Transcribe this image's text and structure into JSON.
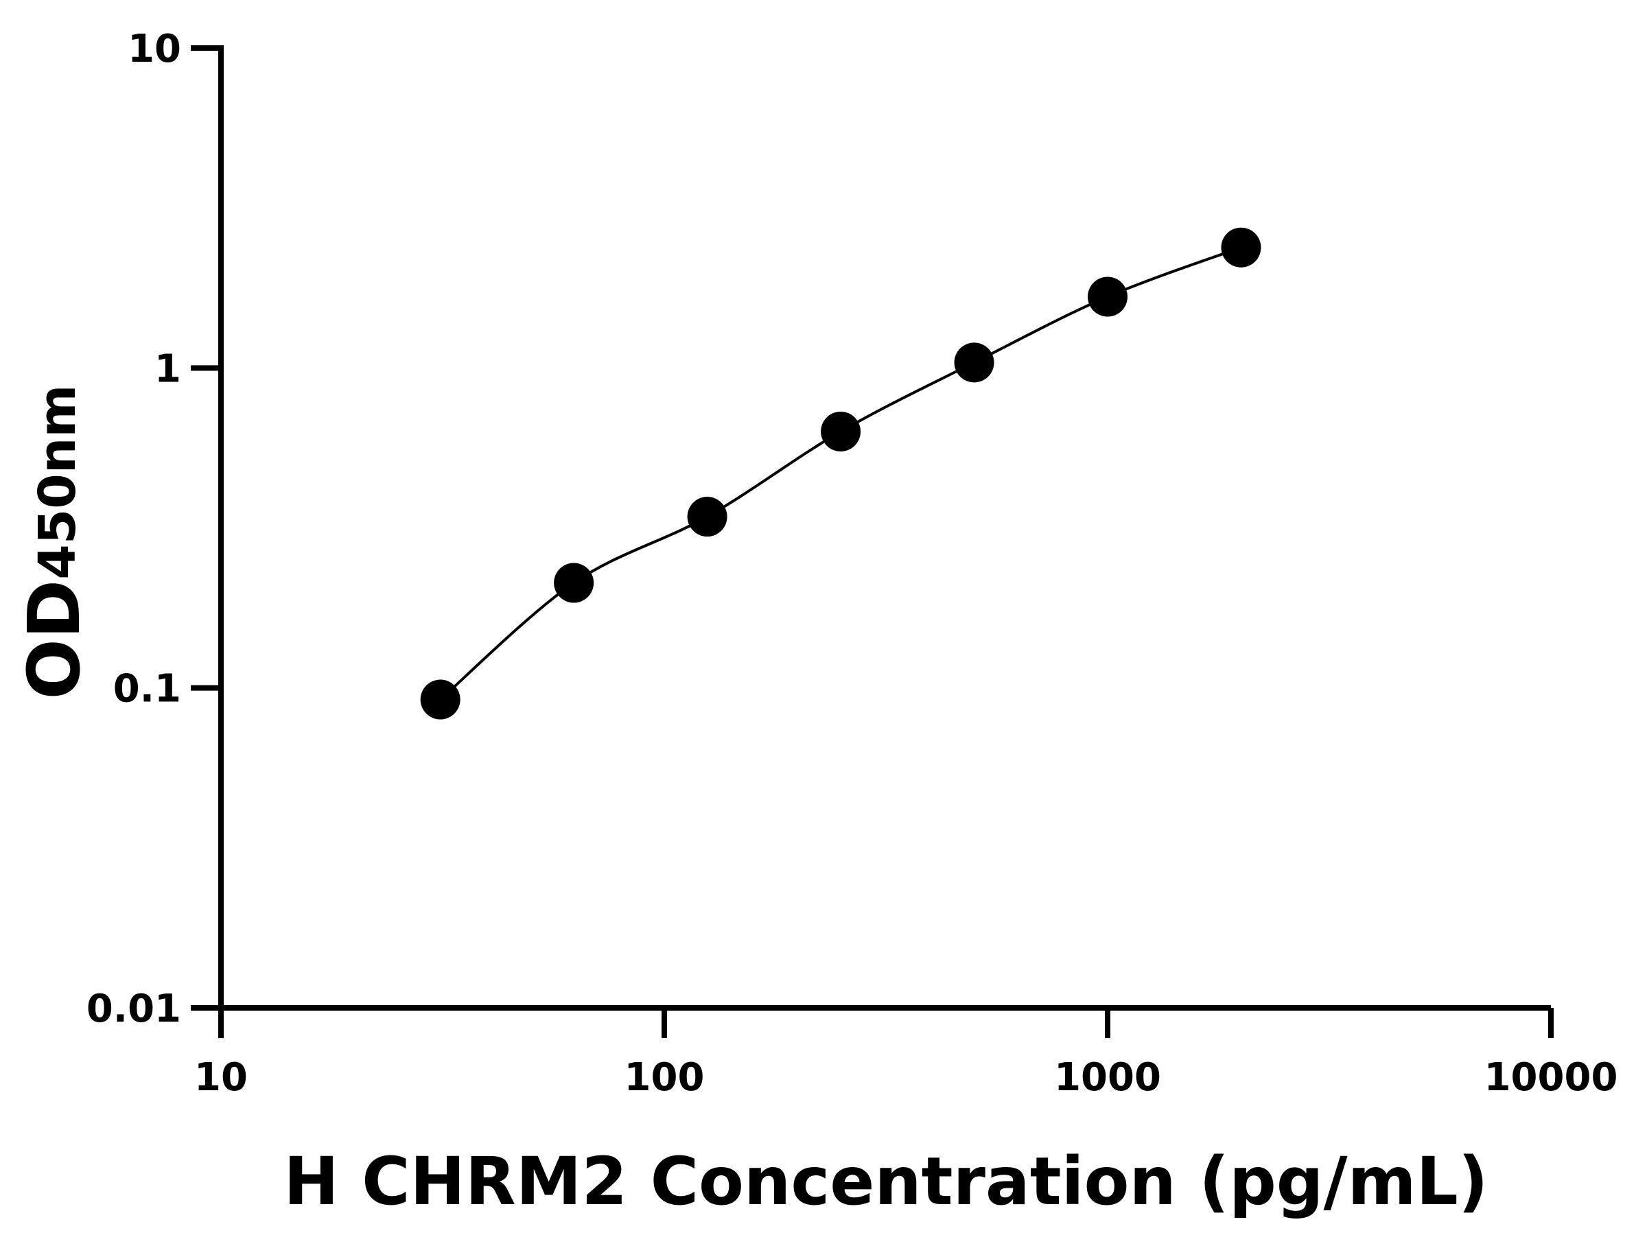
{
  "chart_data": {
    "type": "scatter",
    "x_label": "H CHRM2 Concentration (pg/mL)",
    "y_label": "OD",
    "y_label_subscript": "450nm",
    "x": [
      31.25,
      62.5,
      125,
      250,
      500,
      1000,
      2000
    ],
    "values": [
      0.092,
      0.213,
      0.343,
      0.633,
      1.04,
      1.67,
      2.38
    ],
    "color": "#000000",
    "x_log": true,
    "y_log": true,
    "fit_curve": true,
    "xlim": [
      10,
      10000
    ],
    "xticks": [
      10,
      100,
      1000,
      10000
    ],
    "ylim": [
      0.01,
      10
    ],
    "yticks": [
      0.01,
      0.1,
      1,
      10
    ],
    "grid": false
  }
}
